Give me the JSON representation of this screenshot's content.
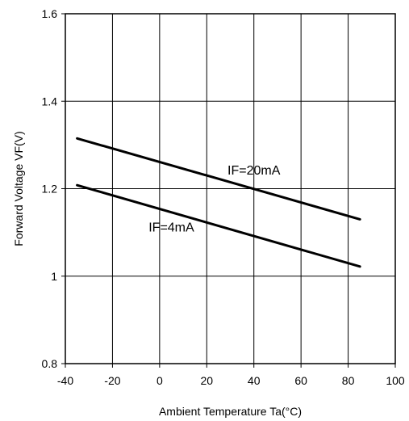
{
  "chart_data": {
    "type": "line",
    "title": "",
    "xlabel": "Ambient Temperature Ta(°C)",
    "ylabel": "Forward Voltage VF(V)",
    "xlim": [
      -40,
      100
    ],
    "ylim": [
      0.8,
      1.6
    ],
    "grid": true,
    "x_ticks": [
      -40,
      -20,
      0,
      20,
      40,
      60,
      80,
      100
    ],
    "x_tick_labels": [
      "-40",
      "-20",
      "0",
      "20",
      "40",
      "60",
      "80",
      "100"
    ],
    "y_ticks": [
      0.8,
      1.0,
      1.2,
      1.4,
      1.6
    ],
    "y_tick_labels": [
      "0.8",
      "1",
      "1.2",
      "1.4",
      "1.6"
    ],
    "series": [
      {
        "name": "IF=20mA",
        "color": "#000000",
        "x": [
          -35,
          85
        ],
        "y": [
          1.315,
          1.13
        ]
      },
      {
        "name": "IF=4mA",
        "color": "#000000",
        "x": [
          -35,
          85
        ],
        "y": [
          1.208,
          1.022
        ]
      }
    ]
  }
}
